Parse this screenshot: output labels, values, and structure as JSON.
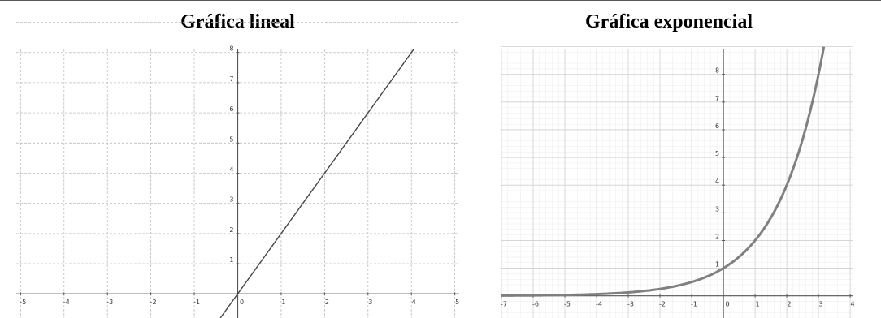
{
  "headers": {
    "linear": "Gráfica lineal",
    "exponential": "Gráfica exponencial"
  },
  "chart_data": [
    {
      "type": "line",
      "title": "Gráfica lineal",
      "xlabel": "",
      "ylabel": "",
      "xlim": [
        -5.1,
        5.1
      ],
      "ylim": [
        -0.8,
        8.1
      ],
      "x_ticks": [
        -5,
        -4,
        -3,
        -2,
        -1,
        0,
        1,
        2,
        3,
        4,
        5
      ],
      "y_ticks": [
        1,
        2,
        3,
        4,
        5,
        6,
        7,
        8
      ],
      "grid": true,
      "series": [
        {
          "x": [
            -0.4,
            4.05
          ],
          "y": [
            -0.8,
            8.1
          ]
        }
      ],
      "line_color": "#444444"
    },
    {
      "type": "line",
      "title": "Gráfica exponencial",
      "xlabel": "",
      "ylabel": "",
      "xlim": [
        -7,
        4.1
      ],
      "ylim": [
        -0.8,
        8.9
      ],
      "x_ticks": [
        -7,
        -6,
        -5,
        -4,
        -3,
        -2,
        -1,
        0,
        1,
        2,
        3,
        4
      ],
      "y_ticks": [
        1,
        2,
        3,
        4,
        5,
        6,
        7,
        8
      ],
      "grid": true,
      "series": [
        {
          "function": "2^x",
          "x_range": [
            -7,
            3.17
          ]
        }
      ],
      "line_color": "#808080"
    }
  ]
}
